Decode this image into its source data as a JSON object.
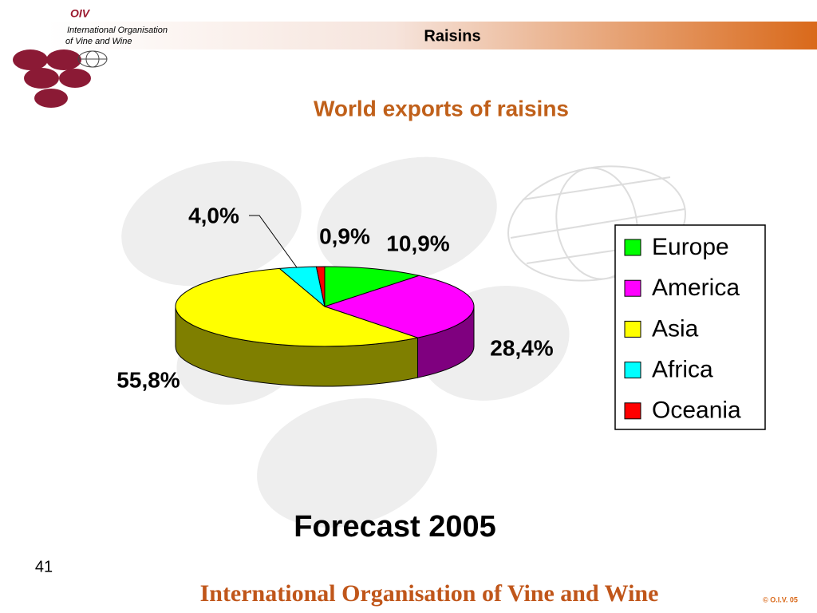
{
  "header": {
    "logo": "OIV",
    "org_line1": "International Organisation",
    "org_line2": "of  Vine  and  Wine",
    "section": "Raisins"
  },
  "chart_data": {
    "type": "pie3d",
    "title": "World exports of raisins",
    "categories": [
      "Europe",
      "America",
      "Asia",
      "Africa",
      "Oceania"
    ],
    "values": [
      10.9,
      28.4,
      55.8,
      4.0,
      0.9
    ],
    "value_labels": [
      "10,9%",
      "28,4%",
      "55,8%",
      "4,0%",
      "0,9%"
    ],
    "colors": [
      "#00ff00",
      "#ff00ff",
      "#ffff00",
      "#00ffff",
      "#ff0000"
    ],
    "legend": "right"
  },
  "caption": "Forecast 2005",
  "page_number": "41",
  "footer": "International Organisation of Vine and Wine",
  "copyright": "© O.I.V. 05"
}
